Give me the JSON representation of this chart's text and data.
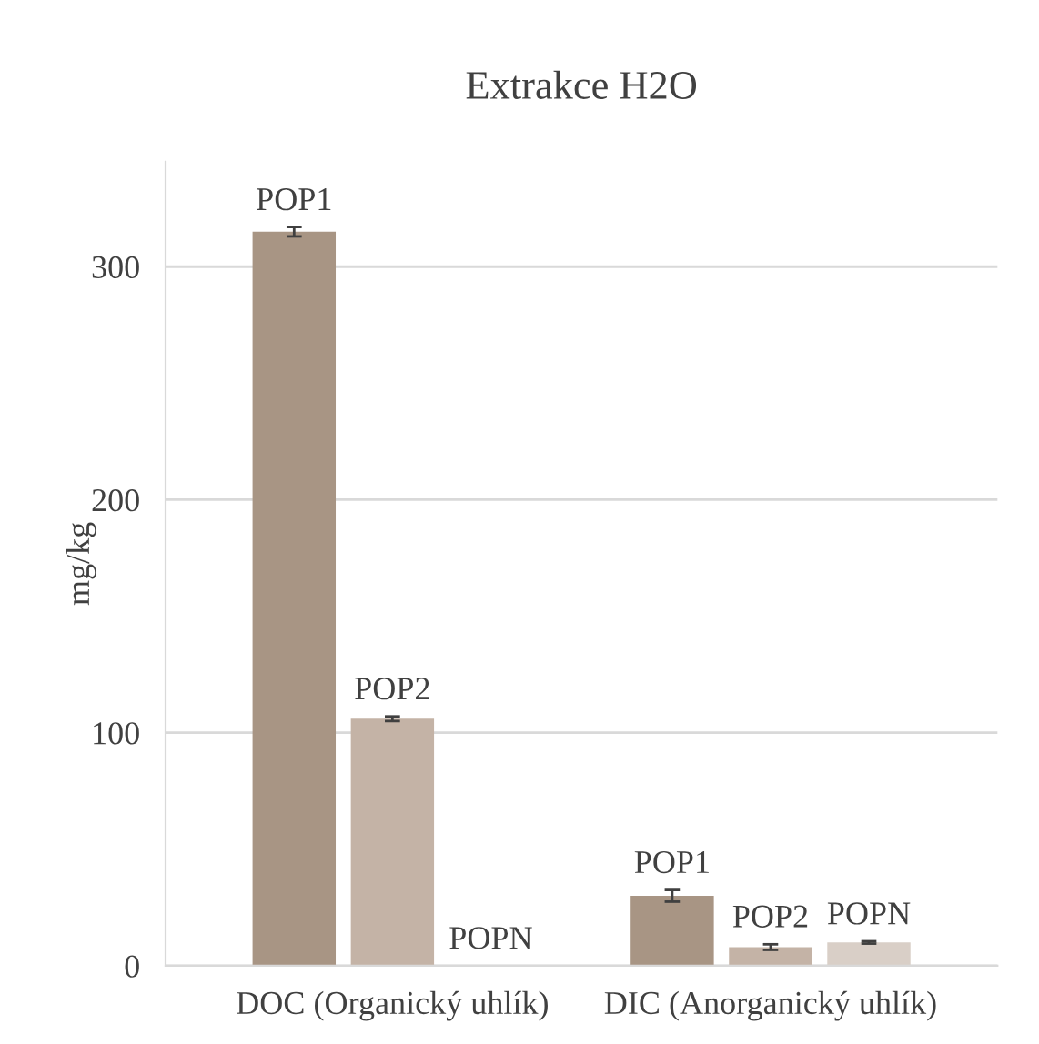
{
  "chart_data": {
    "type": "bar",
    "title": "Extrakce H2O",
    "ylabel": "mg/kg",
    "categories": [
      "DOC (Organický uhlík)",
      "DIC (Anorganický uhlík)"
    ],
    "series": [
      {
        "name": "POP1",
        "color": "#a89584",
        "values": [
          315,
          30
        ],
        "errors": [
          2,
          2.5
        ]
      },
      {
        "name": "POP2",
        "color": "#c4b3a6",
        "values": [
          106,
          8
        ],
        "errors": [
          1,
          1.2
        ]
      },
      {
        "name": "POPN",
        "color": "#d9cfc7",
        "values": [
          0,
          10
        ],
        "errors": [
          null,
          0.5
        ]
      }
    ],
    "ylim": [
      0,
      345
    ],
    "yticks": [
      0,
      100,
      200,
      300
    ],
    "grid": "y",
    "legend": false
  }
}
